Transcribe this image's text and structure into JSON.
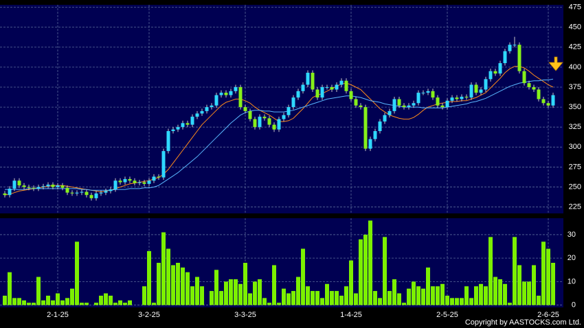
{
  "chart_data": {
    "type": "candlestick",
    "categories": [
      null,
      null,
      null,
      null,
      null,
      null,
      null,
      null,
      null,
      null,
      null,
      "2-1-25",
      null,
      null,
      null,
      null,
      null,
      null,
      null,
      null,
      null,
      null,
      null,
      null,
      null,
      null,
      null,
      null,
      null,
      null,
      "3-2-25",
      null,
      null,
      null,
      null,
      null,
      null,
      null,
      null,
      null,
      null,
      null,
      null,
      null,
      null,
      null,
      null,
      null,
      null,
      null,
      "3-3-25",
      null,
      null,
      null,
      null,
      null,
      null,
      null,
      null,
      null,
      null,
      null,
      null,
      null,
      null,
      null,
      null,
      null,
      null,
      null,
      null,
      null,
      "1-4-25",
      null,
      null,
      null,
      null,
      null,
      null,
      null,
      null,
      null,
      null,
      null,
      null,
      null,
      null,
      null,
      null,
      null,
      null,
      null,
      "2-5-25",
      null,
      null,
      null,
      null,
      null,
      null,
      null,
      null,
      null,
      null,
      null,
      null,
      null,
      null,
      null,
      null,
      null,
      null,
      null,
      null,
      "2-6-25",
      null
    ],
    "open": [
      242,
      240,
      248,
      258,
      252,
      250,
      249,
      248,
      250,
      251,
      253,
      250,
      252,
      249,
      243,
      242,
      243,
      244,
      240,
      236,
      242,
      243,
      245,
      247,
      258,
      256,
      260,
      258,
      255,
      256,
      254,
      258,
      263,
      262,
      295,
      320,
      322,
      325,
      330,
      328,
      338,
      342,
      345,
      350,
      352,
      365,
      368,
      365,
      370,
      375,
      350,
      345,
      335,
      325,
      338,
      336,
      328,
      322,
      335,
      340,
      350,
      362,
      370,
      378,
      393,
      372,
      362,
      375,
      375,
      372,
      378,
      383,
      370,
      360,
      352,
      350,
      298,
      310,
      320,
      332,
      340,
      345,
      360,
      352,
      350,
      352,
      355,
      368,
      368,
      370,
      362,
      352,
      350,
      358,
      362,
      360,
      363,
      362,
      378,
      368,
      372,
      385,
      395,
      392,
      405,
      420,
      428,
      428,
      395,
      380,
      375,
      372,
      360,
      355,
      352
    ],
    "high": [
      245,
      251,
      261,
      261,
      255,
      253,
      252,
      253,
      254,
      256,
      256,
      255,
      255,
      252,
      246,
      246,
      247,
      247,
      243,
      245,
      246,
      248,
      250,
      261,
      261,
      263,
      263,
      261,
      259,
      259,
      261,
      266,
      266,
      298,
      323,
      325,
      328,
      333,
      333,
      341,
      345,
      348,
      353,
      355,
      368,
      371,
      371,
      373,
      378,
      378,
      353,
      348,
      338,
      341,
      341,
      339,
      331,
      338,
      343,
      353,
      365,
      373,
      381,
      396,
      396,
      375,
      378,
      378,
      378,
      381,
      386,
      386,
      373,
      363,
      355,
      353,
      313,
      323,
      335,
      343,
      348,
      363,
      363,
      355,
      355,
      358,
      371,
      371,
      373,
      373,
      365,
      355,
      361,
      365,
      365,
      366,
      366,
      381,
      381,
      375,
      388,
      398,
      398,
      408,
      423,
      431,
      438,
      431,
      398,
      383,
      378,
      375,
      363,
      358,
      368
    ],
    "low": [
      237,
      237,
      245,
      249,
      247,
      246,
      245,
      245,
      247,
      248,
      247,
      247,
      246,
      240,
      239,
      239,
      240,
      237,
      233,
      233,
      239,
      240,
      242,
      244,
      253,
      253,
      255,
      252,
      252,
      251,
      251,
      255,
      259,
      259,
      292,
      317,
      319,
      322,
      325,
      325,
      335,
      339,
      342,
      347,
      349,
      362,
      362,
      362,
      367,
      347,
      342,
      332,
      322,
      322,
      333,
      325,
      319,
      319,
      332,
      337,
      347,
      359,
      367,
      375,
      369,
      359,
      359,
      372,
      369,
      369,
      375,
      367,
      357,
      349,
      347,
      295,
      295,
      307,
      317,
      329,
      337,
      342,
      349,
      347,
      347,
      349,
      352,
      365,
      365,
      359,
      349,
      347,
      347,
      355,
      357,
      357,
      359,
      359,
      365,
      365,
      369,
      382,
      389,
      389,
      402,
      417,
      425,
      392,
      377,
      372,
      369,
      357,
      352,
      349,
      349
    ],
    "close": [
      240,
      248,
      258,
      252,
      250,
      249,
      248,
      250,
      251,
      253,
      250,
      252,
      249,
      243,
      242,
      243,
      244,
      240,
      236,
      242,
      243,
      245,
      247,
      258,
      256,
      260,
      258,
      255,
      256,
      254,
      258,
      263,
      262,
      295,
      320,
      322,
      325,
      330,
      328,
      338,
      342,
      345,
      350,
      352,
      365,
      368,
      365,
      370,
      375,
      350,
      345,
      335,
      325,
      338,
      336,
      328,
      322,
      335,
      340,
      350,
      362,
      370,
      378,
      393,
      372,
      362,
      375,
      375,
      372,
      378,
      383,
      370,
      360,
      352,
      350,
      298,
      310,
      320,
      332,
      340,
      345,
      360,
      352,
      350,
      352,
      355,
      368,
      368,
      370,
      362,
      352,
      350,
      358,
      362,
      360,
      363,
      362,
      378,
      368,
      372,
      385,
      395,
      392,
      405,
      420,
      428,
      428,
      395,
      380,
      375,
      372,
      360,
      355,
      352,
      365
    ],
    "up_color": "#2fd8ff",
    "down_color": "#86f01a",
    "series": [
      {
        "color": "#ff8c1a",
        "values": [
          240,
          241,
          243,
          245,
          246,
          247,
          248,
          249,
          250,
          251,
          252,
          252,
          252,
          251,
          250,
          249,
          248,
          247,
          246,
          245,
          244,
          245,
          246,
          248,
          250,
          252,
          254,
          255,
          256,
          257,
          258,
          260,
          262,
          266,
          272,
          280,
          288,
          296,
          304,
          312,
          320,
          328,
          334,
          340,
          346,
          352,
          356,
          358,
          360,
          360,
          358,
          355,
          350,
          346,
          343,
          340,
          336,
          332,
          332,
          333,
          336,
          342,
          348,
          355,
          362,
          365,
          367,
          370,
          373,
          376,
          379,
          380,
          378,
          375,
          372,
          366,
          360,
          354,
          348,
          344,
          340,
          338,
          336,
          335,
          335,
          337,
          341,
          346,
          350,
          352,
          354,
          355,
          356,
          357,
          357,
          358,
          358,
          360,
          362,
          365,
          368,
          374,
          380,
          386,
          393,
          398,
          401,
          401,
          399,
          395,
          390,
          386,
          382,
          378,
          375
        ]
      },
      {
        "color": "#5ab8ff",
        "values": [
          247,
          247,
          247,
          247,
          247,
          248,
          248,
          248,
          248,
          248,
          248,
          248,
          248,
          248,
          248,
          248,
          247,
          247,
          246,
          246,
          246,
          246,
          246,
          247,
          247,
          247,
          248,
          248,
          248,
          249,
          249,
          250,
          252,
          256,
          260,
          264,
          268,
          273,
          278,
          283,
          288,
          294,
          300,
          306,
          312,
          318,
          324,
          330,
          335,
          340,
          343,
          345,
          346,
          346,
          345,
          345,
          344,
          344,
          344,
          345,
          346,
          348,
          350,
          352,
          354,
          356,
          358,
          360,
          361,
          362,
          363,
          364,
          364,
          363,
          362,
          360,
          358,
          357,
          356,
          354,
          353,
          352,
          351,
          350,
          350,
          350,
          350,
          349,
          349,
          349,
          349,
          349,
          350,
          351,
          352,
          353,
          354,
          356,
          357,
          359,
          361,
          364,
          367,
          370,
          373,
          376,
          378,
          380,
          381,
          382,
          383,
          383,
          384,
          384,
          385
        ]
      }
    ],
    "ylim": [
      217,
      478
    ],
    "yticks": [
      225,
      250,
      275,
      300,
      325,
      350,
      375,
      400,
      425,
      450,
      475
    ],
    "grid": true,
    "volume": {
      "color": "#7cf000",
      "values": [
        4,
        14,
        3,
        3,
        2,
        1,
        1,
        12,
        2,
        4,
        2,
        5,
        2,
        3,
        7,
        27,
        1,
        1,
        0,
        1,
        4,
        5,
        4,
        1,
        2,
        1,
        2,
        0,
        0,
        8,
        23,
        1,
        18,
        31,
        24,
        17,
        18,
        16,
        14,
        8,
        12,
        8,
        0,
        6,
        15,
        6,
        10,
        11,
        11,
        9,
        18,
        5,
        10,
        11,
        3,
        1,
        17,
        1,
        7,
        5,
        6,
        12,
        24,
        8,
        6,
        6,
        3,
        9,
        6,
        6,
        4,
        8,
        19,
        5,
        28,
        30,
        36,
        6,
        3,
        29,
        6,
        11,
        5,
        1,
        7,
        10,
        8,
        7,
        16,
        8,
        8,
        9,
        4,
        3,
        3,
        3,
        8,
        3,
        8,
        9,
        8,
        29,
        12,
        11,
        9,
        1,
        29,
        17,
        10,
        10,
        17,
        4,
        27,
        24,
        18
      ],
      "ylim": [
        -1,
        37
      ],
      "yticks": [
        0,
        10,
        20,
        30
      ]
    },
    "copyright": "Copyright by AASTOCKS.com Ltd."
  }
}
